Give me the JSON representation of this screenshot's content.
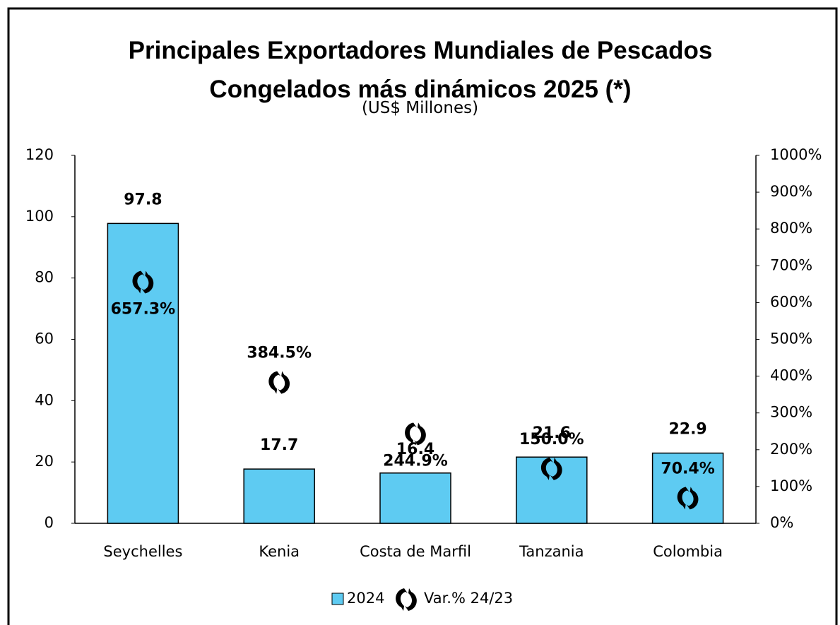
{
  "chart_data": {
    "type": "bar",
    "title": "Principales Exportadores Mundiales de Pescados Congelados más dinámicos 2025 (*)",
    "subtitle": "(US$ Millones)",
    "categories": [
      "Seychelles",
      "Kenia",
      "Costa de Marfil",
      "Tanzania",
      "Colombia"
    ],
    "series": [
      {
        "name": "2024",
        "type": "bar",
        "color": "#5ecbf2",
        "values": [
          97.8,
          17.7,
          16.4,
          21.6,
          22.9
        ]
      },
      {
        "name": "Var.% 24/23",
        "type": "marker",
        "axis": "y2",
        "color": "#000000",
        "values": [
          657.3,
          384.5,
          244.9,
          150.0,
          70.4
        ],
        "value_labels": [
          "657.3%",
          "384.5%",
          "244.9%",
          "150.0%",
          "70.4%"
        ]
      }
    ],
    "ylim": [
      0,
      120
    ],
    "yticks": [
      0,
      20,
      40,
      60,
      80,
      100,
      120
    ],
    "y2lim": [
      0,
      1000
    ],
    "y2ticks": [
      {
        "value": 0,
        "label": "0%"
      },
      {
        "value": 100,
        "label": "100%"
      },
      {
        "value": 200,
        "label": "200%"
      },
      {
        "value": 300,
        "label": "300%"
      },
      {
        "value": 400,
        "label": "400%"
      },
      {
        "value": 500,
        "label": "500%"
      },
      {
        "value": 600,
        "label": "600%"
      },
      {
        "value": 700,
        "label": "700%"
      },
      {
        "value": 800,
        "label": "800%"
      },
      {
        "value": 900,
        "label": "900%"
      },
      {
        "value": 1000,
        "label": "1000%"
      }
    ],
    "legend": "bottom"
  }
}
